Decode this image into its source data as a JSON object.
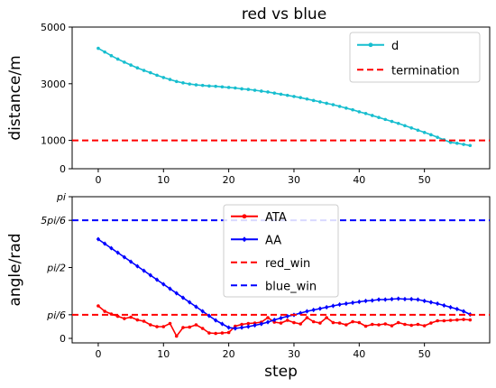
{
  "title": "red vs blue",
  "chart_data": [
    {
      "type": "line",
      "ylabel": "distance/m",
      "xlabel": "",
      "xlim": [
        -4,
        60
      ],
      "ylim": [
        0,
        5000
      ],
      "xticks": [
        0,
        10,
        20,
        30,
        40,
        50
      ],
      "xtick_labels": [
        "0",
        "10",
        "20",
        "30",
        "40",
        "50"
      ],
      "yticks": [
        0,
        1000,
        3000,
        5000
      ],
      "ytick_labels": [
        "0",
        "1000",
        "3000",
        "5000"
      ],
      "legend_position": "top-right",
      "series": [
        {
          "name": "d",
          "color": "#17becf",
          "marker": "dot",
          "x": [
            0,
            1,
            2,
            3,
            4,
            5,
            6,
            7,
            8,
            9,
            10,
            11,
            12,
            13,
            14,
            15,
            16,
            17,
            18,
            19,
            20,
            21,
            22,
            23,
            24,
            25,
            26,
            27,
            28,
            29,
            30,
            31,
            32,
            33,
            34,
            35,
            36,
            37,
            38,
            39,
            40,
            41,
            42,
            43,
            44,
            45,
            46,
            47,
            48,
            49,
            50,
            51,
            52,
            53,
            54,
            55,
            56,
            57
          ],
          "y": [
            4250,
            4120,
            3990,
            3870,
            3760,
            3660,
            3560,
            3470,
            3390,
            3300,
            3220,
            3150,
            3080,
            3030,
            2990,
            2960,
            2940,
            2920,
            2910,
            2890,
            2870,
            2850,
            2820,
            2800,
            2770,
            2740,
            2710,
            2670,
            2630,
            2590,
            2550,
            2510,
            2460,
            2410,
            2360,
            2310,
            2260,
            2200,
            2140,
            2080,
            2010,
            1950,
            1880,
            1810,
            1740,
            1670,
            1600,
            1520,
            1440,
            1360,
            1280,
            1200,
            1110,
            1020,
            930,
            900,
            860,
            820
          ]
        },
        {
          "name": "termination",
          "color": "#ff0000",
          "style": "dashed",
          "hline": 1000
        }
      ]
    },
    {
      "type": "line",
      "ylabel": "angle/rad",
      "xlabel": "step",
      "xlim": [
        -4,
        60
      ],
      "ylim": [
        -0.1,
        3.1416
      ],
      "xticks": [
        0,
        10,
        20,
        30,
        40,
        50
      ],
      "xtick_labels": [
        "0",
        "10",
        "20",
        "30",
        "40",
        "50"
      ],
      "yticks": [
        0,
        0.5236,
        1.5708,
        2.618,
        3.1416
      ],
      "ytick_labels": [
        "0",
        "pi/6",
        "pi/2",
        "5pi/6",
        "pi"
      ],
      "legend_position": "top-center",
      "series": [
        {
          "name": "ATA",
          "color": "#ff0000",
          "marker": "dot",
          "x": [
            0,
            1,
            2,
            3,
            4,
            5,
            6,
            7,
            8,
            9,
            10,
            11,
            12,
            13,
            14,
            15,
            16,
            17,
            18,
            19,
            20,
            21,
            22,
            23,
            24,
            25,
            26,
            27,
            28,
            29,
            30,
            31,
            32,
            33,
            34,
            35,
            36,
            37,
            38,
            39,
            40,
            41,
            42,
            43,
            44,
            45,
            46,
            47,
            48,
            49,
            50,
            51,
            52,
            53,
            54,
            55,
            56,
            57
          ],
          "y": [
            0.72,
            0.6,
            0.54,
            0.49,
            0.44,
            0.47,
            0.41,
            0.38,
            0.3,
            0.26,
            0.26,
            0.33,
            0.05,
            0.24,
            0.25,
            0.3,
            0.22,
            0.12,
            0.11,
            0.12,
            0.13,
            0.27,
            0.31,
            0.33,
            0.34,
            0.36,
            0.46,
            0.36,
            0.34,
            0.4,
            0.35,
            0.32,
            0.46,
            0.37,
            0.34,
            0.46,
            0.35,
            0.34,
            0.3,
            0.37,
            0.35,
            0.27,
            0.31,
            0.3,
            0.32,
            0.28,
            0.35,
            0.31,
            0.29,
            0.31,
            0.28,
            0.34,
            0.39,
            0.39,
            0.4,
            0.41,
            0.42,
            0.41
          ]
        },
        {
          "name": "AA",
          "color": "#0000ff",
          "marker": "diamond",
          "x": [
            0,
            1,
            2,
            3,
            4,
            5,
            6,
            7,
            8,
            9,
            10,
            11,
            12,
            13,
            14,
            15,
            16,
            17,
            18,
            19,
            20,
            21,
            22,
            23,
            24,
            25,
            26,
            27,
            28,
            29,
            30,
            31,
            32,
            33,
            34,
            35,
            36,
            37,
            38,
            39,
            40,
            41,
            42,
            43,
            44,
            45,
            46,
            47,
            48,
            49,
            50,
            51,
            52,
            53,
            54,
            55,
            56,
            57
          ],
          "y": [
            2.2,
            2.1,
            2.0,
            1.9,
            1.8,
            1.7,
            1.6,
            1.5,
            1.4,
            1.3,
            1.2,
            1.1,
            1.0,
            0.9,
            0.8,
            0.7,
            0.6,
            0.5,
            0.4,
            0.32,
            0.24,
            0.22,
            0.24,
            0.26,
            0.29,
            0.32,
            0.36,
            0.41,
            0.45,
            0.49,
            0.52,
            0.56,
            0.6,
            0.63,
            0.66,
            0.69,
            0.72,
            0.75,
            0.77,
            0.79,
            0.81,
            0.83,
            0.84,
            0.86,
            0.86,
            0.87,
            0.88,
            0.87,
            0.87,
            0.86,
            0.83,
            0.8,
            0.77,
            0.73,
            0.69,
            0.65,
            0.6,
            0.53
          ]
        },
        {
          "name": "red_win",
          "color": "#ff0000",
          "style": "dashed",
          "hline": 0.5236
        },
        {
          "name": "blue_win",
          "color": "#0000ff",
          "style": "dashed",
          "hline": 2.618
        }
      ]
    }
  ]
}
